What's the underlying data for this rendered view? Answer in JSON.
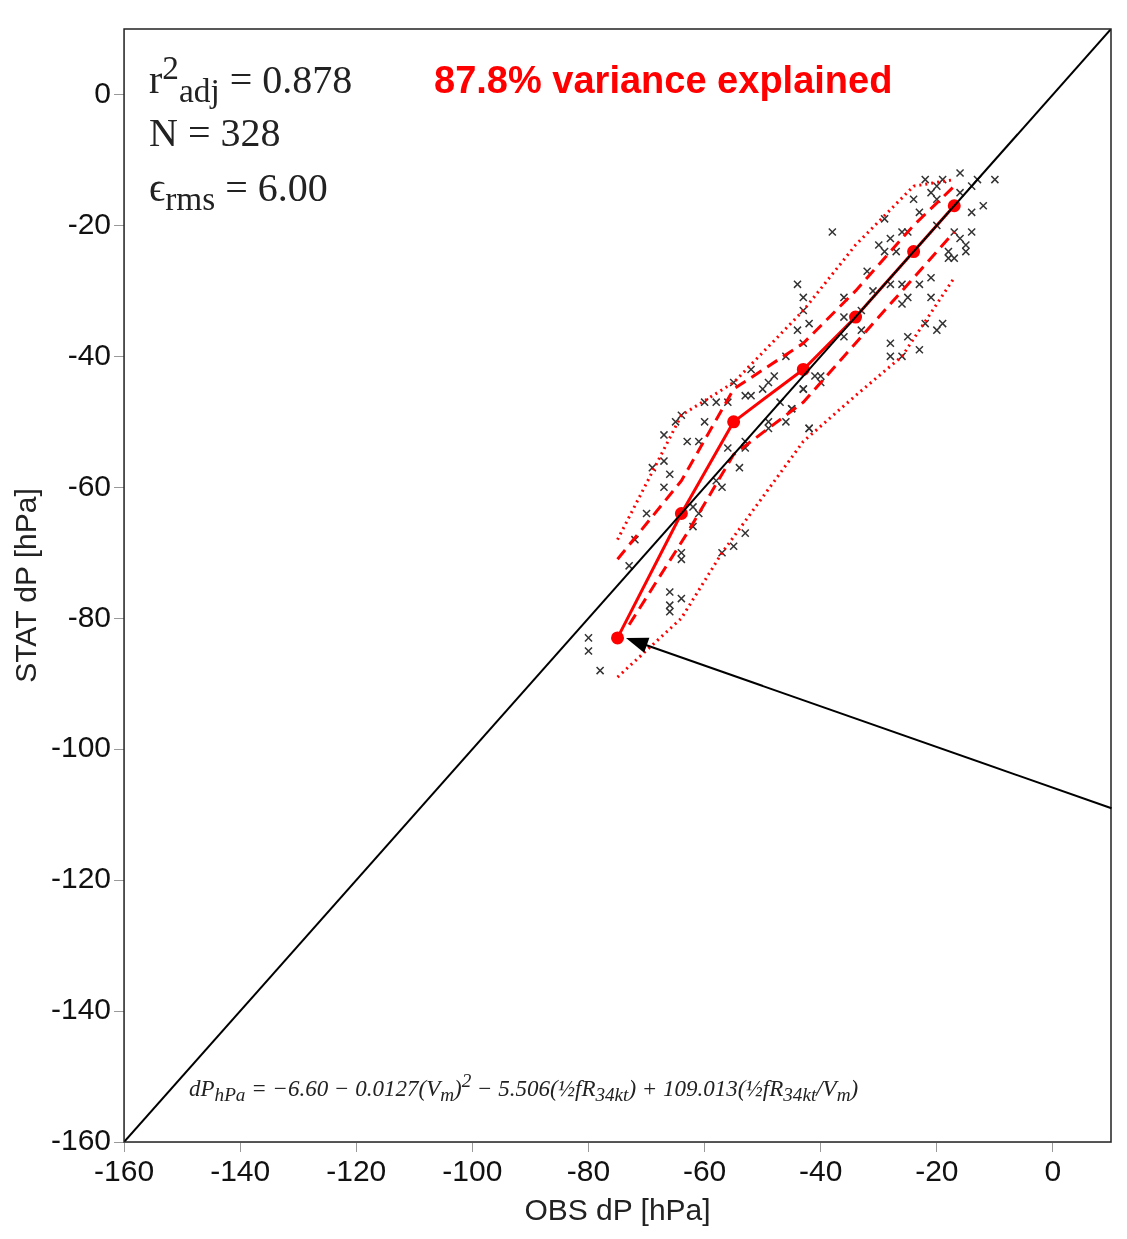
{
  "chart_data": {
    "type": "scatter",
    "xlabel": "OBS dP [hPa]",
    "ylabel": "STAT dP [hPa]",
    "xlim": [
      -160,
      10
    ],
    "ylim": [
      -160,
      10
    ],
    "xticks": [
      -160,
      -140,
      -120,
      -100,
      -80,
      -60,
      -40,
      -20,
      0
    ],
    "yticks": [
      -160,
      -140,
      -120,
      -100,
      -80,
      -60,
      -40,
      -20,
      0
    ],
    "grid": false,
    "legend": false,
    "annotations": [
      "r$^{2}$$_{adj}$ = 0.878",
      "N = 328",
      "ϵ$_{rms}$ = 6.00",
      "87.8% variance explained",
      "dP$_{hPa}$ = −6.60 − 0.0127(V$_{m}$)$^{2}$ − 5.506(½fR$_{34kt}$) + 109.013(½fR$_{34kt}$/V$_{m}$)"
    ],
    "series": [
      {
        "color": "#333333",
        "marker": "cross",
        "x": [
          -80,
          -80,
          -78,
          -66,
          -66,
          -66,
          -64,
          -64,
          -64,
          -73,
          -72,
          -70,
          -67,
          -66,
          -69,
          -67,
          -67,
          -65,
          -64,
          -63,
          -61,
          -60,
          -60,
          -58,
          -56,
          -55,
          -53,
          -52,
          -50,
          -48,
          -52,
          -58,
          -57,
          -56,
          -54,
          -53,
          -53,
          -62,
          -61,
          -62,
          -53,
          -55,
          -57,
          -49,
          -46,
          -42,
          -45,
          -47,
          -41,
          -43,
          -38,
          -44,
          -43,
          -43,
          -42,
          -44,
          -43,
          -46,
          -49,
          -40,
          -40,
          -43,
          -45,
          -42,
          -49,
          -36,
          -36,
          -36,
          -33,
          -32,
          -29,
          -28,
          -29,
          -26,
          -27,
          -28,
          -26,
          -25,
          -26,
          -23,
          -21,
          -21,
          -25,
          -28,
          -28,
          -26,
          -23,
          -22,
          -20,
          -19,
          -24,
          -23,
          -22,
          -20,
          -21,
          -19,
          -16,
          -14,
          -13,
          -10,
          -12,
          -14,
          -14,
          -16,
          -15,
          -15,
          -18,
          -18,
          -17,
          -20,
          -20,
          -16,
          -17,
          -30,
          -25,
          -31,
          -33
        ],
        "values": [
          -83,
          -85,
          -88,
          -76,
          -78,
          -79,
          -77,
          -70,
          -71,
          -72,
          -68,
          -64,
          -60,
          -58,
          -57,
          -56,
          -52,
          -50,
          -49,
          -53,
          -53,
          -50,
          -47,
          -47,
          -47,
          -44,
          -46,
          -46,
          -45,
          -43,
          -42,
          -59,
          -60,
          -54,
          -57,
          -54,
          -53,
          -63,
          -64,
          -66,
          -67,
          -69,
          -70,
          -50,
          -50,
          -51,
          -48,
          -47,
          -43,
          -45,
          -21,
          -29,
          -31,
          -33,
          -35,
          -36,
          -38,
          -40,
          -44,
          -43,
          -44,
          -45,
          -48,
          -51,
          -51,
          -31,
          -34,
          -37,
          -33,
          -27,
          -24,
          -22,
          -19,
          -21,
          -24,
          -29,
          -29,
          -31,
          -32,
          -29,
          -28,
          -31,
          -37,
          -38,
          -40,
          -40,
          -39,
          -35,
          -36,
          -35,
          -16,
          -18,
          -13,
          -14,
          -15,
          -13,
          -12,
          -14,
          -13,
          -13,
          -17,
          -18,
          -21,
          -22,
          -23,
          -24,
          -24,
          -25,
          -21,
          -20,
          -16,
          -15,
          -25,
          -23,
          -21,
          -30,
          -36
        ]
      },
      {
        "type": "line",
        "color": "#000000",
        "marker": "none",
        "line_style": "solid",
        "x": [
          -160,
          10
        ],
        "values": [
          -160,
          10
        ]
      },
      {
        "type": "line",
        "color": "#ff0000",
        "marker": "none",
        "line_style": "dotted",
        "x": [
          -75,
          -64,
          -55,
          -43,
          -34,
          -24,
          -17
        ],
        "values": [
          -68,
          -49,
          -44,
          -33,
          -23,
          -14,
          -13
        ]
      },
      {
        "type": "line",
        "color": "#ff0000",
        "marker": "none",
        "line_style": "dashed",
        "x": [
          -75,
          -64,
          -55,
          -43,
          -34,
          -24,
          -17
        ],
        "values": [
          -71,
          -59,
          -45,
          -38,
          -30,
          -20,
          -14
        ]
      },
      {
        "type": "line",
        "color": "#ff0000",
        "marker": "circle",
        "line_style": "solid",
        "x": [
          -75,
          -64,
          -55,
          -43,
          -34,
          -24,
          -17
        ],
        "values": [
          -83,
          -64,
          -50,
          -42,
          -34,
          -24,
          -17
        ]
      },
      {
        "type": "line",
        "color": "#ff0000",
        "marker": "none",
        "line_style": "dashed",
        "x": [
          -73,
          -63,
          -55,
          -43,
          -34,
          -24,
          -17
        ],
        "values": [
          -81,
          -67,
          -55,
          -47,
          -38,
          -28,
          -21
        ]
      },
      {
        "type": "line",
        "color": "#ff0000",
        "marker": "none",
        "line_style": "dotted",
        "x": [
          -75,
          -64,
          -57,
          -43,
          -34,
          -26,
          -17
        ],
        "values": [
          -89,
          -80,
          -70,
          -53,
          -46,
          -40,
          -28
        ]
      }
    ]
  }
}
